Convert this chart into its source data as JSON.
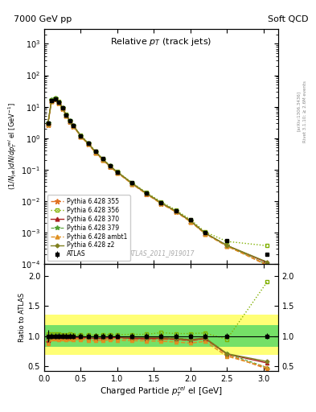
{
  "title_left": "7000 GeV pp",
  "title_right": "Soft QCD",
  "plot_title": "Relative $p_T$$_{\\,(track\\,jets)}$",
  "xlabel": "Charged Particle $p^{rel}_{T}$ el [GeV]",
  "ylabel_main": "(1/Njet)dN/dp$^{rel}_{T}$ el [GeV$^{-1}$]",
  "ylabel_ratio": "Ratio to ATLAS",
  "right_label_top": "Rivet 3.1.10; ≥ 2.6M events",
  "right_label_bot": "[arXiv:1306.3436]",
  "watermark": "ATLAS_2011_I919017",
  "atlas_x": [
    0.05,
    0.1,
    0.15,
    0.2,
    0.25,
    0.3,
    0.35,
    0.4,
    0.5,
    0.6,
    0.7,
    0.8,
    0.9,
    1.0,
    1.2,
    1.4,
    1.6,
    1.8,
    2.0,
    2.2,
    2.5,
    3.05
  ],
  "atlas_y": [
    3.0,
    16.0,
    18.0,
    14.0,
    9.0,
    5.5,
    3.5,
    2.5,
    1.2,
    0.7,
    0.38,
    0.22,
    0.13,
    0.085,
    0.038,
    0.018,
    0.009,
    0.005,
    0.0025,
    0.001,
    0.00055,
    0.0002
  ],
  "atlas_yerr": [
    0.3,
    0.8,
    0.9,
    0.7,
    0.45,
    0.27,
    0.17,
    0.12,
    0.06,
    0.035,
    0.019,
    0.011,
    0.0065,
    0.004,
    0.0019,
    0.0009,
    0.00045,
    0.00025,
    0.000125,
    5e-05,
    2.8e-05,
    1e-05
  ],
  "pythia_x": [
    0.05,
    0.1,
    0.15,
    0.2,
    0.25,
    0.3,
    0.35,
    0.4,
    0.5,
    0.6,
    0.7,
    0.8,
    0.9,
    1.0,
    1.2,
    1.4,
    1.6,
    1.8,
    2.0,
    2.2,
    2.5,
    3.05
  ],
  "p355_y": [
    2.7,
    15.5,
    17.5,
    13.5,
    8.8,
    5.3,
    3.4,
    2.4,
    1.15,
    0.67,
    0.36,
    0.21,
    0.125,
    0.082,
    0.036,
    0.017,
    0.0085,
    0.0047,
    0.0023,
    0.00095,
    0.00038,
    9e-05
  ],
  "p356_y": [
    3.1,
    16.5,
    18.5,
    14.5,
    9.2,
    5.6,
    3.6,
    2.55,
    1.22,
    0.71,
    0.385,
    0.225,
    0.133,
    0.087,
    0.039,
    0.0185,
    0.0095,
    0.0052,
    0.0026,
    0.00105,
    0.00052,
    0.00038
  ],
  "p370_y": [
    2.8,
    15.8,
    17.8,
    13.8,
    9.0,
    5.4,
    3.45,
    2.45,
    1.17,
    0.68,
    0.365,
    0.212,
    0.127,
    0.083,
    0.0365,
    0.0172,
    0.00865,
    0.00475,
    0.00232,
    0.00096,
    0.000385,
    0.00011
  ],
  "p379_y": [
    3.0,
    16.2,
    18.2,
    14.2,
    9.1,
    5.5,
    3.52,
    2.5,
    1.18,
    0.69,
    0.37,
    0.215,
    0.129,
    0.084,
    0.037,
    0.0175,
    0.0088,
    0.00485,
    0.00235,
    0.00097,
    0.00039,
    9.5e-05
  ],
  "pambt1_y": [
    2.6,
    15.2,
    17.2,
    13.2,
    8.6,
    5.2,
    3.32,
    2.35,
    1.13,
    0.65,
    0.35,
    0.203,
    0.122,
    0.079,
    0.035,
    0.0165,
    0.0082,
    0.0045,
    0.0022,
    0.00091,
    0.000365,
    9.5e-05
  ],
  "pz2_y": [
    2.85,
    15.9,
    17.9,
    13.9,
    9.05,
    5.45,
    3.48,
    2.47,
    1.19,
    0.69,
    0.372,
    0.216,
    0.129,
    0.084,
    0.037,
    0.0176,
    0.00875,
    0.0048,
    0.00235,
    0.00097,
    0.000388,
    0.000115
  ],
  "colors": {
    "atlas": "#000000",
    "p355": "#e07020",
    "p356": "#80b000",
    "p370": "#aa2020",
    "p379": "#50a030",
    "pambt1": "#e09020",
    "pz2": "#808020"
  },
  "ylim_main": [
    0.0001,
    3000
  ],
  "ylim_ratio": [
    0.42,
    2.2
  ],
  "xlim": [
    0.0,
    3.2
  ],
  "ratio_yticks": [
    0.5,
    1.0,
    1.5,
    2.0
  ],
  "bin_edges": [
    0.0,
    0.075,
    0.125,
    0.175,
    0.225,
    0.275,
    0.325,
    0.375,
    0.45,
    0.55,
    0.65,
    0.75,
    0.85,
    0.95,
    1.1,
    1.3,
    1.5,
    1.7,
    1.9,
    2.1,
    2.35,
    2.75,
    3.2
  ],
  "ratio_green_lo": 0.82,
  "ratio_green_hi": 1.18,
  "ratio_yellow_lo": 0.68,
  "ratio_yellow_hi": 1.35
}
